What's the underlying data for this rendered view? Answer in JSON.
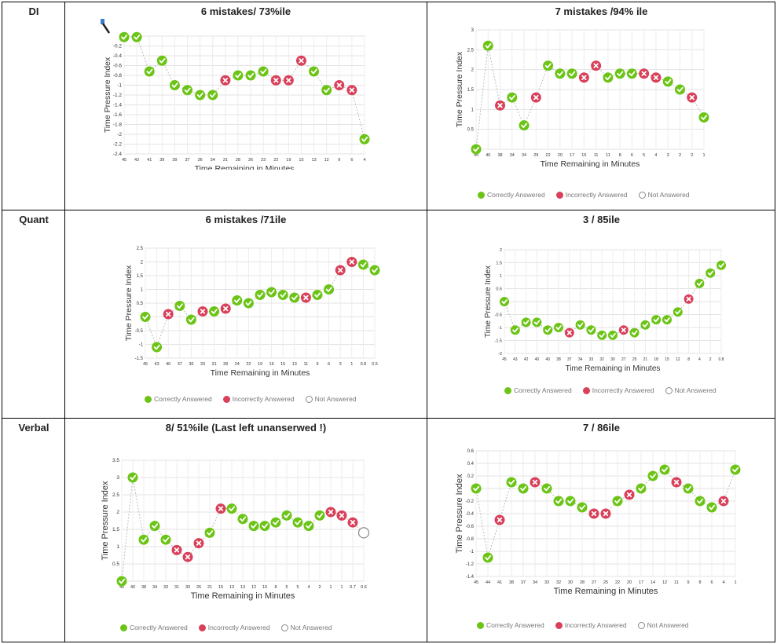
{
  "rows": [
    {
      "label": "DI"
    },
    {
      "label": "Quant"
    },
    {
      "label": "Verbal"
    }
  ],
  "legend": {
    "correct": "Correctly Answered",
    "incorrect": "Incorrectly Answered",
    "not_answered": "Not Answered"
  },
  "colors": {
    "correct": "#6cc417",
    "incorrect": "#d9405a",
    "not_answered": "#888888"
  },
  "chart_data": [
    {
      "type": "scatter",
      "title": "6 mistakes/ 73%ile",
      "xlabel": "Time Remaining in Minutes",
      "ylabel": "Time Pressure Index",
      "ylim": [
        -2.4,
        0
      ],
      "yticks": [
        -0.2,
        -0.4,
        -0.6,
        -0.8,
        -1,
        -1.2,
        -1.4,
        -1.6,
        -1.8,
        -2,
        -2.2,
        -2.4
      ],
      "categories": [
        "45",
        "42",
        "41",
        "39",
        "39",
        "37",
        "36",
        "34",
        "31",
        "28",
        "26",
        "23",
        "22",
        "19",
        "15",
        "13",
        "12",
        "9",
        "6",
        "4"
      ],
      "values": [
        -0.02,
        -0.02,
        -0.72,
        -0.5,
        -1.0,
        -1.1,
        -1.2,
        -1.2,
        -0.9,
        -0.8,
        -0.8,
        -0.72,
        -0.9,
        -0.9,
        -0.5,
        -0.72,
        -1.1,
        -1.0,
        -1.1,
        -2.1
      ],
      "status": [
        "c",
        "c",
        "c",
        "c",
        "c",
        "c",
        "c",
        "c",
        "i",
        "c",
        "c",
        "c",
        "i",
        "i",
        "i",
        "c",
        "c",
        "i",
        "i",
        "c"
      ],
      "legend_visible": false
    },
    {
      "type": "scatter",
      "title": "7 mistakes /94% ile",
      "xlabel": "Time Remaining in Minutes",
      "ylabel": "Time Pressure Index",
      "ylim": [
        0,
        3
      ],
      "yticks": [
        0.5,
        1,
        1.5,
        2,
        2.5,
        3
      ],
      "categories": [
        "45",
        "40",
        "38",
        "34",
        "34",
        "29",
        "22",
        "20",
        "17",
        "15",
        "11",
        "11",
        "8",
        "6",
        "5",
        "4",
        "3",
        "2",
        "2",
        "1"
      ],
      "values": [
        0,
        2.6,
        1.1,
        1.3,
        0.6,
        1.3,
        2.1,
        1.9,
        1.9,
        1.8,
        2.1,
        1.8,
        1.9,
        1.9,
        1.9,
        1.8,
        1.7,
        1.5,
        1.3,
        0.8
      ],
      "status": [
        "c",
        "c",
        "i",
        "c",
        "c",
        "i",
        "c",
        "c",
        "c",
        "i",
        "i",
        "c",
        "c",
        "c",
        "i",
        "i",
        "c",
        "c",
        "i",
        "c"
      ],
      "legend_visible": true
    },
    {
      "type": "scatter",
      "title": "6 mistakes /71ile",
      "xlabel": "Time Remaining in Minutes",
      "ylabel": "Time Pressure Index",
      "ylim": [
        -1.5,
        2.5
      ],
      "yticks": [
        2.5,
        2,
        1.5,
        1,
        0.5,
        0,
        -0.5,
        -1,
        -1.5
      ],
      "categories": [
        "45",
        "43",
        "40",
        "37",
        "36",
        "33",
        "31",
        "28",
        "24",
        "22",
        "19",
        "16",
        "15",
        "13",
        "11",
        "9",
        "6",
        "3",
        "1",
        "0.8",
        "0.5"
      ],
      "values": [
        0,
        -1.1,
        0.1,
        0.4,
        -0.1,
        0.2,
        0.2,
        0.3,
        0.6,
        0.5,
        0.8,
        0.9,
        0.8,
        0.7,
        0.7,
        0.8,
        1.0,
        1.7,
        2.0,
        1.9,
        1.7
      ],
      "status": [
        "c",
        "c",
        "i",
        "c",
        "c",
        "i",
        "c",
        "i",
        "c",
        "c",
        "c",
        "c",
        "c",
        "c",
        "i",
        "c",
        "c",
        "i",
        "i",
        "c",
        "c"
      ],
      "legend_visible": true
    },
    {
      "type": "scatter",
      "title": "3 / 85ile",
      "xlabel": "Time Remaining in Minutes",
      "ylabel": "Time Pressure Index",
      "ylim": [
        -2,
        2
      ],
      "yticks": [
        2,
        1.5,
        1,
        0.5,
        0,
        -0.5,
        -1,
        -1.5,
        -2
      ],
      "categories": [
        "45",
        "43",
        "42",
        "40",
        "40",
        "38",
        "37",
        "34",
        "33",
        "32",
        "30",
        "27",
        "25",
        "21",
        "18",
        "15",
        "12",
        "8",
        "4",
        "2",
        "0.8"
      ],
      "values": [
        0,
        -1.1,
        -0.8,
        -0.8,
        -1.1,
        -1.0,
        -1.2,
        -0.9,
        -1.1,
        -1.3,
        -1.3,
        -1.1,
        -1.2,
        -0.9,
        -0.7,
        -0.7,
        -0.4,
        0.1,
        0.7,
        1.1,
        1.4
      ],
      "status": [
        "c",
        "c",
        "c",
        "c",
        "c",
        "c",
        "i",
        "c",
        "c",
        "c",
        "c",
        "i",
        "c",
        "c",
        "c",
        "c",
        "c",
        "i",
        "c",
        "c",
        "c"
      ],
      "legend_visible": true
    },
    {
      "type": "scatter",
      "title": "8/ 51%ile (Last left unanserwed !)",
      "xlabel": "Time Remaining in Minutes",
      "ylabel": "Time Pressure Index",
      "ylim": [
        0,
        3.5
      ],
      "yticks": [
        3.5,
        3,
        2.5,
        2,
        1.5,
        1,
        0.5
      ],
      "categories": [
        "45",
        "40",
        "38",
        "34",
        "33",
        "31",
        "30",
        "26",
        "21",
        "15",
        "13",
        "13",
        "12",
        "10",
        "8",
        "5",
        "5",
        "4",
        "2",
        "1",
        "1",
        "0.7",
        "0.6"
      ],
      "values": [
        0,
        3.0,
        1.2,
        1.6,
        1.2,
        0.9,
        0.7,
        1.1,
        1.4,
        2.1,
        2.1,
        1.8,
        1.6,
        1.6,
        1.7,
        1.9,
        1.7,
        1.6,
        1.9,
        2.0,
        1.9,
        1.7,
        1.4
      ],
      "status": [
        "c",
        "c",
        "c",
        "c",
        "c",
        "i",
        "i",
        "i",
        "c",
        "i",
        "c",
        "c",
        "c",
        "c",
        "c",
        "c",
        "c",
        "c",
        "c",
        "i",
        "i",
        "i",
        "n"
      ],
      "legend_visible": true
    },
    {
      "type": "scatter",
      "title": "7 / 86ile",
      "xlabel": "Time Remaining in Minutes",
      "ylabel": "Time Pressure Index",
      "ylim": [
        -1.4,
        0.6
      ],
      "yticks": [
        0.6,
        0.4,
        0.2,
        0,
        -0.2,
        -0.4,
        -0.6,
        -0.8,
        -1,
        -1.2,
        -1.4
      ],
      "categories": [
        "45",
        "44",
        "41",
        "38",
        "37",
        "34",
        "33",
        "32",
        "30",
        "28",
        "27",
        "25",
        "22",
        "20",
        "17",
        "14",
        "12",
        "11",
        "9",
        "8",
        "6",
        "4",
        "1"
      ],
      "values": [
        0,
        -1.1,
        -0.5,
        0.1,
        0,
        0.1,
        0,
        -0.2,
        -0.2,
        -0.3,
        -0.4,
        -0.4,
        -0.2,
        -0.1,
        0,
        0.2,
        0.3,
        0.1,
        0,
        -0.2,
        -0.3,
        -0.2,
        0.3
      ],
      "status": [
        "c",
        "c",
        "i",
        "c",
        "c",
        "i",
        "c",
        "c",
        "c",
        "c",
        "i",
        "i",
        "c",
        "i",
        "c",
        "c",
        "c",
        "i",
        "c",
        "c",
        "c",
        "i",
        "c"
      ],
      "legend_visible": true
    }
  ]
}
